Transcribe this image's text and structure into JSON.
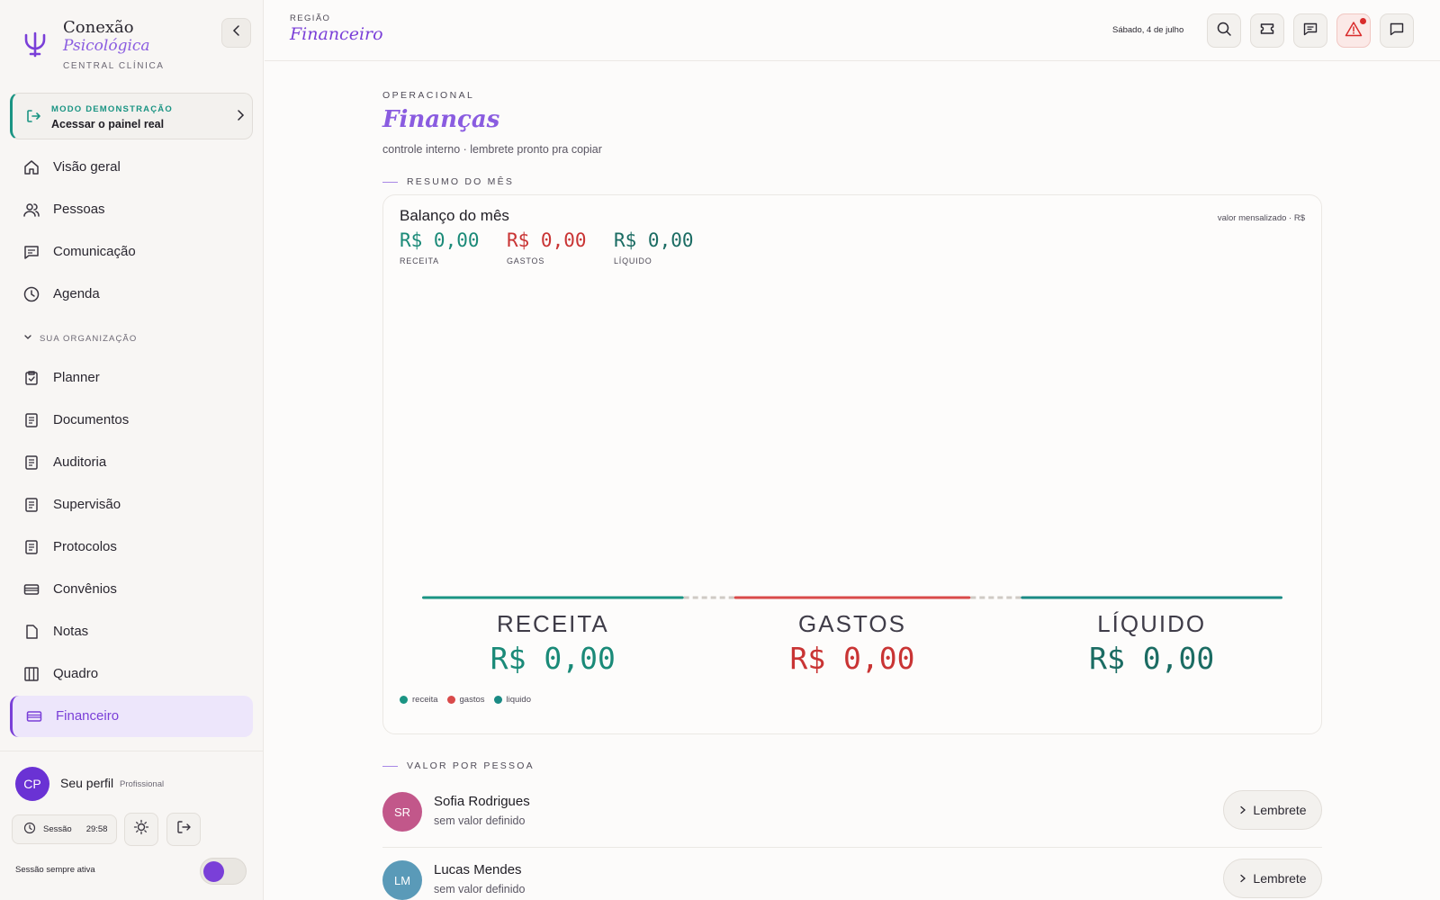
{
  "brand": {
    "name": "Conexão",
    "name_italic": "Psicológica",
    "tagline": "CENTRAL CLÍNICA"
  },
  "demo": {
    "kicker": "MODO DEMONSTRAÇÃO",
    "action": "Acessar o painel real"
  },
  "nav": {
    "primary": [
      {
        "label": "Visão geral",
        "icon": "home-icon"
      },
      {
        "label": "Pessoas",
        "icon": "users-icon"
      },
      {
        "label": "Comunicação",
        "icon": "message-icon"
      },
      {
        "label": "Agenda",
        "icon": "clock-icon"
      }
    ],
    "section_label": "SUA ORGANIZAÇÃO",
    "secondary": [
      {
        "label": "Planner",
        "icon": "clipboard-check-icon"
      },
      {
        "label": "Documentos",
        "icon": "document-icon"
      },
      {
        "label": "Auditoria",
        "icon": "document-icon"
      },
      {
        "label": "Supervisão",
        "icon": "document-icon"
      },
      {
        "label": "Protocolos",
        "icon": "document-icon"
      },
      {
        "label": "Convênios",
        "icon": "card-icon"
      },
      {
        "label": "Notas",
        "icon": "file-icon"
      },
      {
        "label": "Quadro",
        "icon": "columns-icon"
      },
      {
        "label": "Financeiro",
        "icon": "card-icon",
        "active": true
      }
    ]
  },
  "profile": {
    "initials": "CP",
    "name": "Seu perfil",
    "role": "Profissional",
    "session_label": "Sessão",
    "session_time": "29:58",
    "always_active": "Sessão sempre ativa",
    "always_active_on": true
  },
  "topbar": {
    "region_label": "REGIÃO",
    "section": "Financeiro",
    "date": "Sábado, 4 de julho"
  },
  "page": {
    "eyebrow": "OPERACIONAL",
    "title": "Finanças",
    "subtitle": "controle interno · lembrete pronto pra copiar",
    "summary_label": "RESUMO DO MÊS",
    "people_label": "VALOR POR PESSOA"
  },
  "balance": {
    "title": "Balanço do mês",
    "note": "valor mensalizado · R$",
    "kpis": [
      {
        "value": "R$ 0,00",
        "caption": "RECEITA"
      },
      {
        "value": "R$ 0,00",
        "caption": "GASTOS"
      },
      {
        "value": "R$ 0,00",
        "caption": "LÍQUIDO"
      }
    ],
    "legend": [
      "receita",
      "gastos",
      "liquido"
    ]
  },
  "chart_data": {
    "type": "bar",
    "categories": [
      "RECEITA",
      "GASTOS",
      "LÍQUIDO"
    ],
    "values": [
      0,
      0,
      0
    ],
    "value_labels": [
      "R$ 0,00",
      "R$ 0,00",
      "R$ 0,00"
    ],
    "colors": [
      "#1a9483",
      "#d94a4a",
      "#1a8a84"
    ]
  },
  "people": [
    {
      "initials": "SR",
      "name": "Sofia Rodrigues",
      "status": "sem valor definido",
      "action": "Lembrete",
      "color": "#c2578a"
    },
    {
      "initials": "LM",
      "name": "Lucas Mendes",
      "status": "sem valor definido",
      "action": "Lembrete",
      "color": "#5a9ab8"
    }
  ],
  "colors": {
    "accent": "#7a3fd8",
    "teal": "#1a9483",
    "red": "#c93434"
  }
}
